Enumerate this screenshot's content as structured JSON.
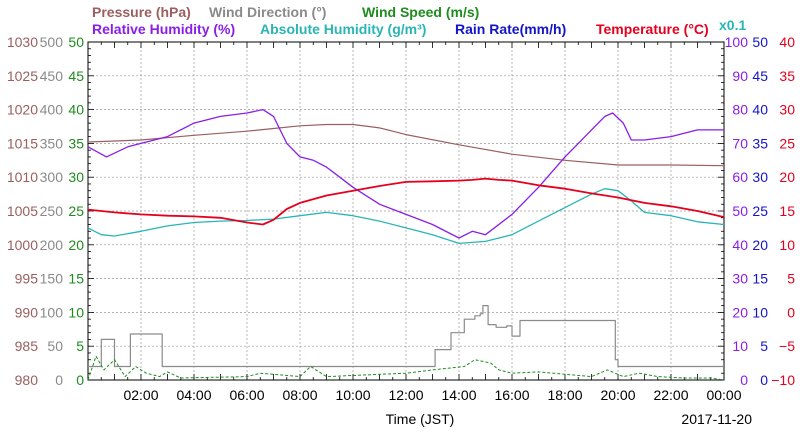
{
  "colors": {
    "pressure": "#9b5f5f",
    "wind_direction": "#8a8a8a",
    "wind_speed": "#1e8c1e",
    "relative_humidity": "#8a1ee6",
    "absolute_humidity": "#2ab5b5",
    "rain_rate": "#1414c8",
    "temperature": "#e6001e",
    "text": "#000000",
    "grid": "#9a9a9a"
  },
  "header": {
    "row1": [
      {
        "key": "pressure",
        "label": "Pressure (hPa)"
      },
      {
        "key": "wind_direction",
        "label": "Wind Direction (°)"
      },
      {
        "key": "wind_speed",
        "label": "Wind Speed (m/s)"
      }
    ],
    "row2": [
      {
        "key": "relative_humidity",
        "label": "Relative Humidity (%)"
      },
      {
        "key": "absolute_humidity",
        "label": "Absolute Humidity (g/m³)"
      },
      {
        "key": "rain_rate",
        "label": "Rain Rate(mm/h)"
      },
      {
        "key": "temperature",
        "label": "Temperature (°C)"
      }
    ],
    "rain_multiplier": "x0.1"
  },
  "footer": {
    "xlabel": "Time (JST)",
    "date": "2017-11-20"
  },
  "chart_data": {
    "type": "line",
    "xlabel": "Time (JST)",
    "x_unit": "hours",
    "xlim": [
      0,
      24
    ],
    "x_ticks": [
      {
        "value": 2,
        "label": "02:00"
      },
      {
        "value": 4,
        "label": "04:00"
      },
      {
        "value": 6,
        "label": "06:00"
      },
      {
        "value": 8,
        "label": "08:00"
      },
      {
        "value": 10,
        "label": "10:00"
      },
      {
        "value": 12,
        "label": "12:00"
      },
      {
        "value": 14,
        "label": "14:00"
      },
      {
        "value": 16,
        "label": "16:00"
      },
      {
        "value": 18,
        "label": "18:00"
      },
      {
        "value": 20,
        "label": "20:00"
      },
      {
        "value": 22,
        "label": "22:00"
      },
      {
        "value": 24,
        "label": "00:00"
      }
    ],
    "grid": true,
    "axes": [
      {
        "key": "pressure",
        "side": "left",
        "ylim": [
          980,
          1030
        ],
        "ticks": [
          "980",
          "985",
          "990",
          "995",
          "1000",
          "1005",
          "1010",
          "1015",
          "1020",
          "1025",
          "1030"
        ]
      },
      {
        "key": "wind_direction",
        "side": "left",
        "ylim": [
          0,
          500
        ],
        "ticks": [
          "0",
          "50",
          "100",
          "150",
          "200",
          "250",
          "300",
          "350",
          "400",
          "450",
          "500"
        ]
      },
      {
        "key": "wind_speed",
        "side": "left",
        "ylim": [
          0,
          50
        ],
        "ticks": [
          "0",
          "5",
          "10",
          "15",
          "20",
          "25",
          "30",
          "35",
          "40",
          "45",
          "50"
        ]
      },
      {
        "key": "relative_humidity",
        "side": "right",
        "ylim": [
          0,
          100
        ],
        "ticks": [
          "0",
          "10",
          "20",
          "30",
          "40",
          "50",
          "60",
          "70",
          "80",
          "90",
          "100"
        ]
      },
      {
        "key": "rain_rate",
        "side": "right",
        "ylim": [
          0,
          50
        ],
        "ticks": [
          "0",
          "5",
          "10",
          "15",
          "20",
          "25",
          "30",
          "35",
          "40",
          "45",
          "50"
        ]
      },
      {
        "key": "temperature",
        "side": "right",
        "ylim": [
          -10,
          40
        ],
        "ticks": [
          "−10",
          "−5",
          "0",
          "5",
          "10",
          "15",
          "20",
          "25",
          "30",
          "35",
          "40"
        ]
      }
    ],
    "series": [
      {
        "name": "Pressure (hPa)",
        "key": "pressure",
        "axis": "pressure",
        "x": [
          0,
          2,
          4,
          6,
          7,
          8,
          9,
          10,
          11,
          12,
          14,
          16,
          18,
          20,
          22,
          24
        ],
        "y": [
          1015.2,
          1015.5,
          1016.2,
          1016.8,
          1017.2,
          1017.6,
          1017.8,
          1017.8,
          1017.3,
          1016.3,
          1014.8,
          1013.4,
          1012.5,
          1011.8,
          1011.8,
          1011.7
        ]
      },
      {
        "name": "Wind Direction (°)",
        "key": "wind_direction",
        "axis": "wind_direction",
        "x": [
          0,
          0.5,
          1.0,
          1.35,
          1.6,
          2.4,
          2.8,
          12.5,
          13.1,
          13.7,
          14.2,
          14.6,
          14.8,
          14.9,
          15.1,
          15.4,
          15.8,
          16.0,
          16.3,
          19.8,
          19.9,
          20.0,
          24
        ],
        "y": [
          20,
          60,
          20,
          20,
          68,
          68,
          20,
          20,
          45,
          70,
          90,
          95,
          98,
          110,
          82,
          78,
          80,
          65,
          88,
          88,
          30,
          20,
          20
        ]
      },
      {
        "name": "Wind Speed (m/s)",
        "key": "wind_speed",
        "axis": "wind_speed",
        "x": [
          0,
          0.3,
          0.6,
          1.0,
          1.4,
          1.8,
          2.2,
          2.7,
          3.0,
          3.5,
          6.0,
          6.5,
          8.0,
          8.4,
          9.0,
          12.0,
          13.0,
          14.2,
          14.6,
          15.2,
          15.5,
          16.0,
          17.0,
          19.0,
          19.6,
          20.2,
          20.8,
          21.5,
          22.5,
          23.5,
          24.0
        ],
        "y": [
          0,
          3.5,
          1.5,
          3.0,
          0.5,
          2.0,
          1.0,
          0.5,
          1.2,
          0.3,
          0.5,
          1.0,
          0.5,
          2.0,
          0.5,
          1.0,
          1.5,
          2.0,
          3.0,
          2.5,
          1.5,
          1.0,
          1.2,
          0.5,
          1.5,
          0.5,
          1.0,
          0.5,
          0.3,
          0.3,
          0
        ]
      },
      {
        "name": "Relative Humidity (%)",
        "key": "relative_humidity",
        "axis": "relative_humidity",
        "x": [
          0,
          0.7,
          1.5,
          2.0,
          3.0,
          4.0,
          5.0,
          6.0,
          6.6,
          7.0,
          7.5,
          8.0,
          8.5,
          9.0,
          9.5,
          10.0,
          11.0,
          12.0,
          13.0,
          14.0,
          14.5,
          15.0,
          16.0,
          17.0,
          18.0,
          19.0,
          19.5,
          19.8,
          20.2,
          20.5,
          21.0,
          22.0,
          23.0,
          24.0
        ],
        "y": [
          69,
          66,
          69,
          70,
          72,
          76,
          78,
          79,
          80,
          78,
          70,
          66,
          65,
          63,
          60,
          57,
          52,
          49,
          46,
          42,
          44,
          43,
          49,
          57,
          66,
          74,
          78,
          79,
          76,
          71,
          71,
          72,
          74,
          74
        ]
      },
      {
        "name": "Absolute Humidity (g/m³)",
        "key": "absolute_humidity",
        "axis": "wind_speed",
        "x": [
          0,
          0.5,
          1.0,
          2.0,
          3.0,
          4.0,
          5.0,
          6.0,
          7.0,
          8.0,
          9.0,
          10.0,
          11.0,
          12.0,
          13.0,
          14.0,
          15.0,
          16.0,
          17.0,
          18.0,
          19.0,
          19.5,
          20.0,
          20.5,
          21.0,
          22.0,
          23.0,
          24.0
        ],
        "y": [
          22.5,
          21.5,
          21.3,
          22.0,
          22.8,
          23.3,
          23.5,
          23.6,
          23.8,
          24.3,
          24.8,
          24.3,
          23.5,
          22.5,
          21.5,
          20.2,
          20.5,
          21.5,
          23.5,
          25.5,
          27.5,
          28.3,
          28.0,
          26.5,
          24.8,
          24.3,
          23.4,
          23.0
        ]
      },
      {
        "name": "Temperature (°C)",
        "key": "temperature",
        "axis": "temperature",
        "x": [
          0,
          1.0,
          2.0,
          3.0,
          4.0,
          5.0,
          6.0,
          6.6,
          7.0,
          7.5,
          8.0,
          9.0,
          10.0,
          11.0,
          12.0,
          13.0,
          14.0,
          14.5,
          15.0,
          15.5,
          16.0,
          17.0,
          18.0,
          19.0,
          20.0,
          21.0,
          22.0,
          23.0,
          24.0
        ],
        "y": [
          15.2,
          14.8,
          14.5,
          14.3,
          14.2,
          14.0,
          13.3,
          13.0,
          13.7,
          15.3,
          16.2,
          17.3,
          18.0,
          18.7,
          19.3,
          19.4,
          19.5,
          19.6,
          19.8,
          19.6,
          19.5,
          18.8,
          18.3,
          17.6,
          17.0,
          16.2,
          15.7,
          15.0,
          14.1
        ]
      }
    ]
  }
}
